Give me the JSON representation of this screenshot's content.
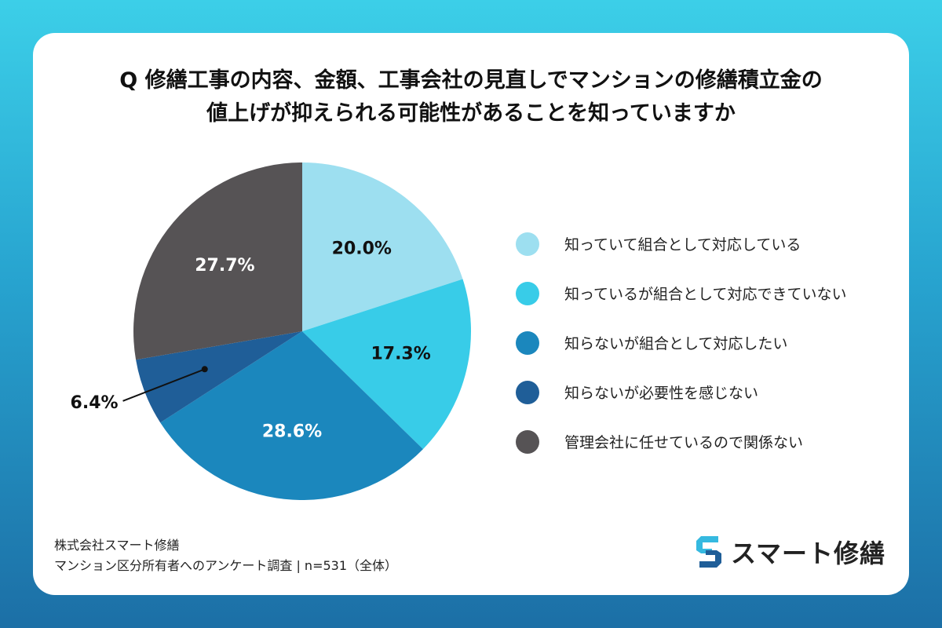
{
  "title": {
    "line1": "Q 修繕工事の内容、金額、工事会社の見直しでマンションの修繕積立金の",
    "line2": "値上げが抑えられる可能性があることを知っていますか"
  },
  "chart_data": {
    "type": "pie",
    "slices": [
      {
        "label": "知っていて組合として対応している",
        "value": 20.0,
        "value_label": "20.0%",
        "color": "#9ddff0",
        "label_color": "#111111"
      },
      {
        "label": "知っているが組合として対応できていない",
        "value": 17.3,
        "value_label": "17.3%",
        "color": "#38cce8",
        "label_color": "#111111"
      },
      {
        "label": "知らないが組合として対応したい",
        "value": 28.6,
        "value_label": "28.6%",
        "color": "#1b87bd",
        "label_color": "#ffffff"
      },
      {
        "label": "知らないが必要性を感じない",
        "value": 6.4,
        "value_label": "6.4%",
        "color": "#1f5e98",
        "label_color": "#111111",
        "callout": true
      },
      {
        "label": "管理会社に任せているので関係ない",
        "value": 27.7,
        "value_label": "27.7%",
        "color": "#565355",
        "label_color": "#ffffff"
      }
    ],
    "start": "12 o'clock",
    "direction": "clockwise",
    "legend_position": "right"
  },
  "source": {
    "line1": "株式会社スマート修繕",
    "line2": "マンション区分所有者へのアンケート調査 | n=531（全体）"
  },
  "logo": {
    "text": "スマート修繕",
    "color_light": "#35b9e0",
    "color_dark": "#1f5e98"
  }
}
